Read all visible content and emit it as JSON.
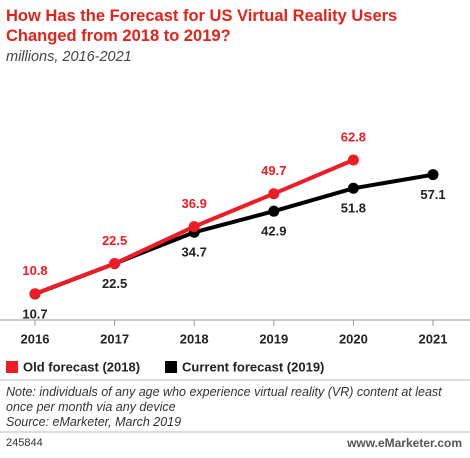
{
  "chart_data": {
    "type": "line",
    "title": "How Has the Forecast for US Virtual Reality Users Changed from 2018 to 2019?",
    "subtitle": "millions, 2016-2021",
    "x": [
      "2016",
      "2017",
      "2018",
      "2019",
      "2020",
      "2021"
    ],
    "series": [
      {
        "name": "Old forecast (2018)",
        "color": "#ee1c25",
        "values": [
          10.8,
          22.5,
          36.9,
          49.7,
          62.8,
          null
        ]
      },
      {
        "name": "Current forecast (2019)",
        "color": "#000000",
        "values": [
          10.7,
          22.5,
          34.7,
          42.9,
          51.8,
          57.1
        ]
      }
    ],
    "note": "Note: individuals of any age who experience virtual reality (VR) content at least once per month via any device",
    "source": "Source: eMarketer, March 2019",
    "chart_id": "245844",
    "website": "www.eMarketer.com"
  }
}
